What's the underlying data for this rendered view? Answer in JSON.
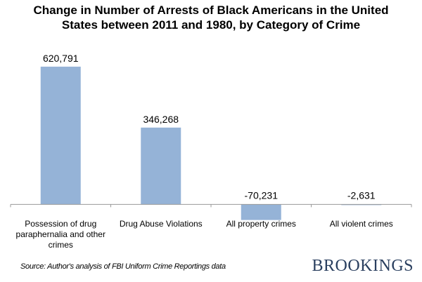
{
  "chart_data": {
    "type": "bar",
    "title": "Change in Number of Arrests of Black Americans in the United States between 2011 and 1980, by Category of Crime",
    "categories": [
      "Possession of drug paraphernalia and other crimes",
      "Drug Abuse Violations",
      "All property crimes",
      "All violent crimes"
    ],
    "values": [
      620791,
      346268,
      -70231,
      -2631
    ],
    "data_labels": [
      "620,791",
      "346,268",
      "-70,231",
      "-2,631"
    ],
    "xlabel": "",
    "ylabel": "",
    "ylim": [
      -100000,
      700000
    ],
    "grid": false,
    "y_axis_shown": false,
    "bar_color": "#95B3D7"
  },
  "source": "Source: Author's analysis of FBI Uniform Crime Reportings data",
  "logo": "BROOKINGS"
}
